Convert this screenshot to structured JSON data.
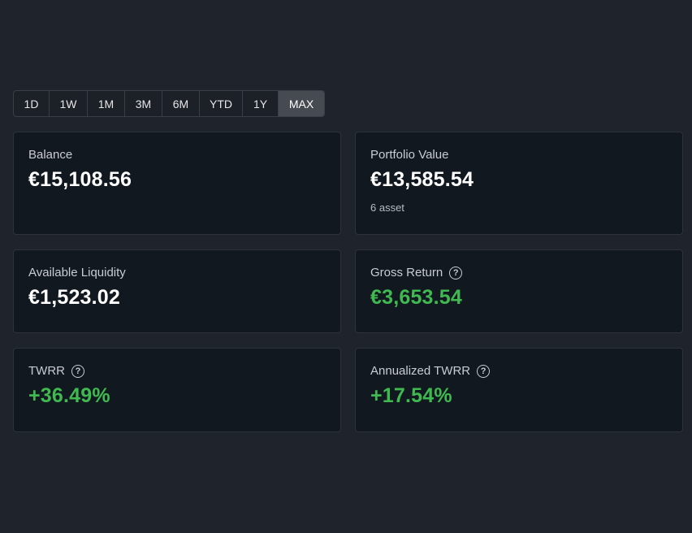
{
  "ranges": [
    {
      "label": "1D"
    },
    {
      "label": "1W"
    },
    {
      "label": "1M"
    },
    {
      "label": "3M"
    },
    {
      "label": "6M"
    },
    {
      "label": "YTD"
    },
    {
      "label": "1Y"
    },
    {
      "label": "MAX",
      "active": true
    }
  ],
  "cards": {
    "balance": {
      "label": "Balance",
      "value": "€15,108.56"
    },
    "portfolio": {
      "label": "Portfolio Value",
      "value": "€13,585.54",
      "sub": "6 asset"
    },
    "liquidity": {
      "label": "Available Liquidity",
      "value": "€1,523.02"
    },
    "gross": {
      "label": "Gross Return",
      "value": "€3,653.54",
      "icon": "help-circle-icon"
    },
    "twrr": {
      "label": "TWRR",
      "value": "+36.49%",
      "icon": "help-circle-icon"
    },
    "annualized": {
      "label": "Annualized TWRR",
      "value": "+17.54%",
      "icon": "help-circle-icon"
    }
  },
  "colors": {
    "positive": "#3fb950",
    "background": "#1f232b",
    "card": "#111820"
  }
}
